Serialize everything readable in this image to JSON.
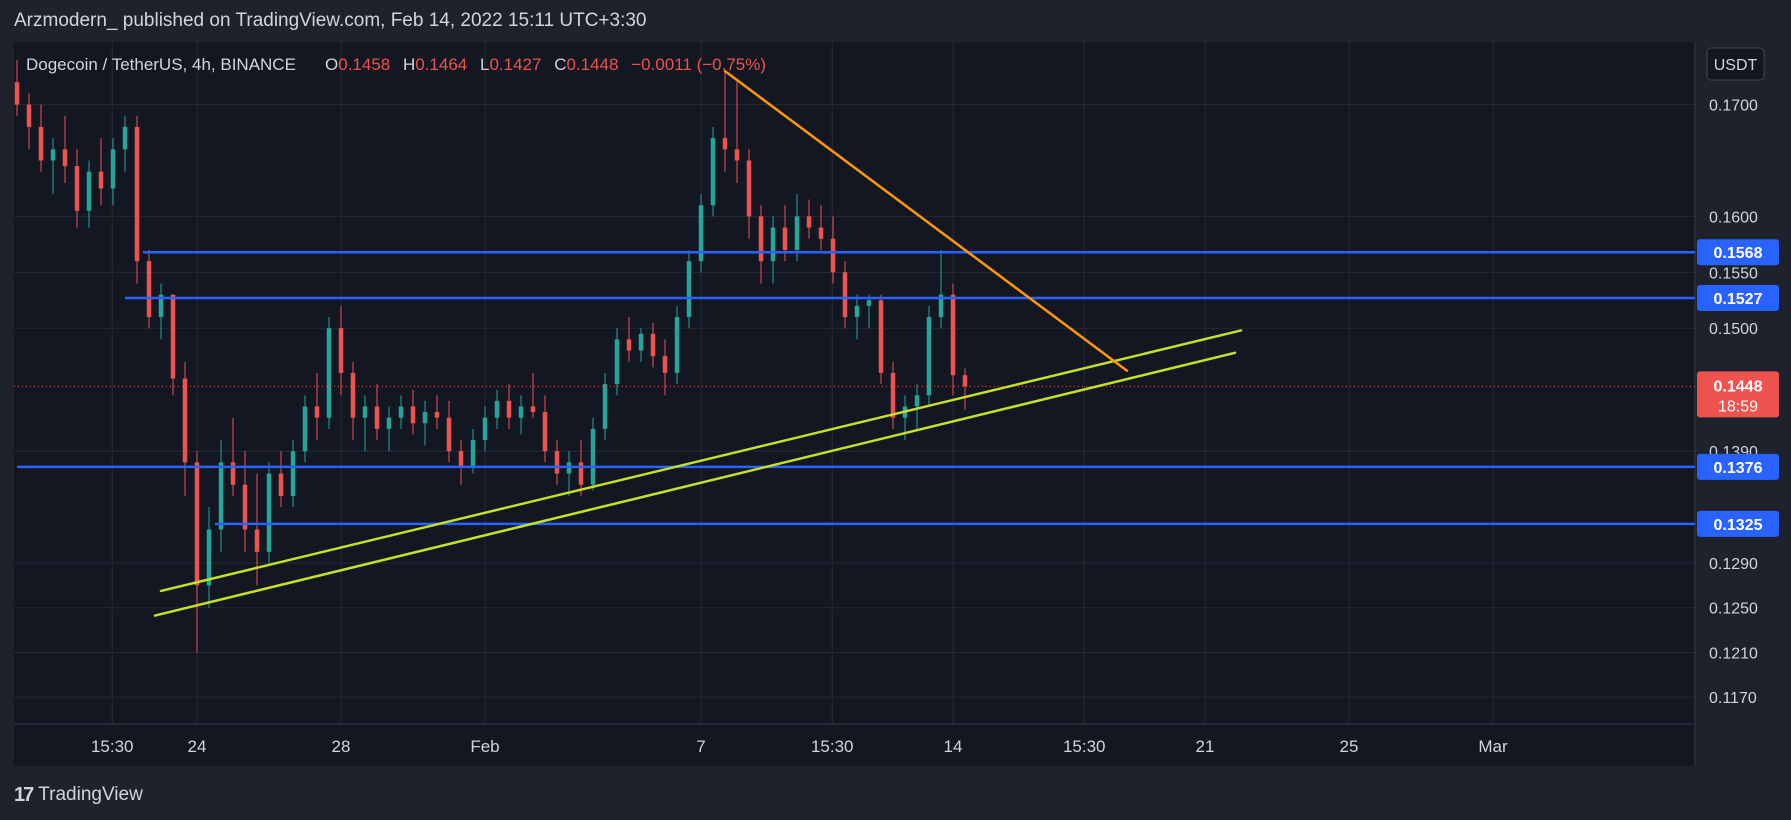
{
  "header": {
    "published_line": "Arzmodern_ published on TradingView.com, Feb 14, 2022 15:11 UTC+3:30"
  },
  "legend": {
    "symbol": "Dogecoin / TetherUS, 4h, BINANCE",
    "open_label": "O",
    "open_value": "0.1458",
    "high_label": "H",
    "high_value": "0.1464",
    "low_label": "L",
    "low_value": "0.1427",
    "close_label": "C",
    "close_value": "0.1448",
    "change": "−0.0011 (−0.75%)"
  },
  "currency_label": "USDT",
  "footer": {
    "logo_text": "TradingView",
    "logo_mark": "17"
  },
  "colors": {
    "background": "#131722",
    "frame": "#1e222d",
    "grid": "#262a35",
    "up": "#26a69a",
    "down": "#ef5350",
    "level_line": "#2962ff",
    "trend_line": "#c6e02a",
    "resistance_line": "#ff9800",
    "text": "#d1d4dc"
  },
  "chart_data": {
    "type": "candlestick",
    "instrument": "Dogecoin / TetherUS",
    "timeframe": "4h",
    "exchange": "BINANCE",
    "y_axis": {
      "ylim": [
        0.1146,
        0.1756
      ],
      "tick_labels": [
        "0.1700",
        "0.1600",
        "0.1550",
        "0.1500",
        "0.1390",
        "0.1290",
        "0.1250",
        "0.1210",
        "0.1170"
      ],
      "tick_values": [
        0.17,
        0.16,
        0.155,
        0.15,
        0.139,
        0.129,
        0.125,
        0.121,
        0.117
      ]
    },
    "x_axis": {
      "tick_labels": [
        "15:30",
        "24",
        "28",
        "Feb",
        "7",
        "15:30",
        "14",
        "15:30",
        "21",
        "25",
        "Mar"
      ],
      "tick_dates": [
        "2022-01-21 15:30",
        "2022-01-24",
        "2022-01-28",
        "2022-02-01",
        "2022-02-07",
        "2022-02-10 15:30",
        "2022-02-14",
        "2022-02-17 15:30",
        "2022-02-21",
        "2022-02-25",
        "2022-03-01"
      ]
    },
    "last_price": {
      "value": 0.1448,
      "label": "0.1448",
      "countdown": "18:59"
    },
    "horizontal_levels": [
      {
        "value": 0.1568,
        "label": "0.1568",
        "start": "2022-01-22 12:00"
      },
      {
        "value": 0.1527,
        "label": "0.1527",
        "start": "2022-01-22 00:00"
      },
      {
        "value": 0.1376,
        "label": "0.1376",
        "start": "2022-01-19 00:00"
      },
      {
        "value": 0.1325,
        "label": "0.1325",
        "start": "2022-01-24 12:00"
      }
    ],
    "trend_lines": [
      {
        "name": "upper-support",
        "color": "#c6e02a",
        "from": [
          "2022-01-23 00:00",
          0.1265
        ],
        "to": [
          "2022-02-22 00:00",
          0.1498
        ]
      },
      {
        "name": "lower-support",
        "color": "#c6e02a",
        "from": [
          "2022-01-22 20:00",
          0.1243
        ],
        "to": [
          "2022-02-21 20:00",
          0.1478
        ]
      },
      {
        "name": "descending-resistance",
        "color": "#ff9800",
        "from": [
          "2022-02-07 16:00",
          0.173
        ],
        "to": [
          "2022-02-18 20:00",
          0.1462
        ]
      }
    ],
    "candles": [
      {
        "t": "2022-01-19 00:00",
        "o": 0.172,
        "h": 0.174,
        "l": 0.169,
        "c": 0.17
      },
      {
        "t": "2022-01-19 08:00",
        "o": 0.17,
        "h": 0.171,
        "l": 0.166,
        "c": 0.168
      },
      {
        "t": "2022-01-19 16:00",
        "o": 0.168,
        "h": 0.17,
        "l": 0.164,
        "c": 0.165
      },
      {
        "t": "2022-01-20 00:00",
        "o": 0.165,
        "h": 0.167,
        "l": 0.162,
        "c": 0.166
      },
      {
        "t": "2022-01-20 08:00",
        "o": 0.166,
        "h": 0.169,
        "l": 0.163,
        "c": 0.1645
      },
      {
        "t": "2022-01-20 16:00",
        "o": 0.1645,
        "h": 0.166,
        "l": 0.159,
        "c": 0.1605
      },
      {
        "t": "2022-01-21 00:00",
        "o": 0.1605,
        "h": 0.165,
        "l": 0.159,
        "c": 0.164
      },
      {
        "t": "2022-01-21 08:00",
        "o": 0.164,
        "h": 0.167,
        "l": 0.161,
        "c": 0.1625
      },
      {
        "t": "2022-01-21 16:00",
        "o": 0.1625,
        "h": 0.167,
        "l": 0.161,
        "c": 0.166
      },
      {
        "t": "2022-01-22 00:00",
        "o": 0.166,
        "h": 0.169,
        "l": 0.164,
        "c": 0.168
      },
      {
        "t": "2022-01-22 08:00",
        "o": 0.168,
        "h": 0.169,
        "l": 0.154,
        "c": 0.156
      },
      {
        "t": "2022-01-22 16:00",
        "o": 0.156,
        "h": 0.157,
        "l": 0.15,
        "c": 0.151
      },
      {
        "t": "2022-01-23 00:00",
        "o": 0.151,
        "h": 0.154,
        "l": 0.149,
        "c": 0.153
      },
      {
        "t": "2022-01-23 08:00",
        "o": 0.153,
        "h": 0.153,
        "l": 0.144,
        "c": 0.1455
      },
      {
        "t": "2022-01-23 16:00",
        "o": 0.1455,
        "h": 0.147,
        "l": 0.135,
        "c": 0.138
      },
      {
        "t": "2022-01-24 00:00",
        "o": 0.138,
        "h": 0.139,
        "l": 0.121,
        "c": 0.127
      },
      {
        "t": "2022-01-24 08:00",
        "o": 0.127,
        "h": 0.134,
        "l": 0.125,
        "c": 0.132
      },
      {
        "t": "2022-01-24 16:00",
        "o": 0.132,
        "h": 0.14,
        "l": 0.13,
        "c": 0.138
      },
      {
        "t": "2022-01-25 00:00",
        "o": 0.138,
        "h": 0.142,
        "l": 0.135,
        "c": 0.136
      },
      {
        "t": "2022-01-25 08:00",
        "o": 0.136,
        "h": 0.139,
        "l": 0.13,
        "c": 0.132
      },
      {
        "t": "2022-01-25 16:00",
        "o": 0.132,
        "h": 0.137,
        "l": 0.127,
        "c": 0.13
      },
      {
        "t": "2022-01-26 00:00",
        "o": 0.13,
        "h": 0.138,
        "l": 0.129,
        "c": 0.137
      },
      {
        "t": "2022-01-26 08:00",
        "o": 0.137,
        "h": 0.139,
        "l": 0.134,
        "c": 0.135
      },
      {
        "t": "2022-01-26 16:00",
        "o": 0.135,
        "h": 0.14,
        "l": 0.134,
        "c": 0.139
      },
      {
        "t": "2022-01-27 00:00",
        "o": 0.139,
        "h": 0.144,
        "l": 0.138,
        "c": 0.143
      },
      {
        "t": "2022-01-27 08:00",
        "o": 0.143,
        "h": 0.146,
        "l": 0.14,
        "c": 0.142
      },
      {
        "t": "2022-01-27 16:00",
        "o": 0.142,
        "h": 0.151,
        "l": 0.141,
        "c": 0.15
      },
      {
        "t": "2022-01-28 00:00",
        "o": 0.15,
        "h": 0.152,
        "l": 0.144,
        "c": 0.146
      },
      {
        "t": "2022-01-28 08:00",
        "o": 0.146,
        "h": 0.147,
        "l": 0.14,
        "c": 0.142
      },
      {
        "t": "2022-01-28 16:00",
        "o": 0.142,
        "h": 0.144,
        "l": 0.139,
        "c": 0.143
      },
      {
        "t": "2022-01-29 00:00",
        "o": 0.143,
        "h": 0.145,
        "l": 0.14,
        "c": 0.141
      },
      {
        "t": "2022-01-29 08:00",
        "o": 0.141,
        "h": 0.143,
        "l": 0.139,
        "c": 0.142
      },
      {
        "t": "2022-01-29 16:00",
        "o": 0.142,
        "h": 0.144,
        "l": 0.141,
        "c": 0.143
      },
      {
        "t": "2022-01-30 00:00",
        "o": 0.143,
        "h": 0.1445,
        "l": 0.1405,
        "c": 0.1415
      },
      {
        "t": "2022-01-30 08:00",
        "o": 0.1415,
        "h": 0.1435,
        "l": 0.1395,
        "c": 0.1425
      },
      {
        "t": "2022-01-30 16:00",
        "o": 0.1425,
        "h": 0.144,
        "l": 0.141,
        "c": 0.142
      },
      {
        "t": "2022-01-31 00:00",
        "o": 0.142,
        "h": 0.1435,
        "l": 0.138,
        "c": 0.139
      },
      {
        "t": "2022-01-31 08:00",
        "o": 0.139,
        "h": 0.14,
        "l": 0.136,
        "c": 0.1375
      },
      {
        "t": "2022-01-31 16:00",
        "o": 0.1375,
        "h": 0.141,
        "l": 0.137,
        "c": 0.14
      },
      {
        "t": "2022-02-01 00:00",
        "o": 0.14,
        "h": 0.143,
        "l": 0.139,
        "c": 0.142
      },
      {
        "t": "2022-02-01 08:00",
        "o": 0.142,
        "h": 0.1445,
        "l": 0.141,
        "c": 0.1435
      },
      {
        "t": "2022-02-01 16:00",
        "o": 0.1435,
        "h": 0.145,
        "l": 0.141,
        "c": 0.142
      },
      {
        "t": "2022-02-02 00:00",
        "o": 0.142,
        "h": 0.144,
        "l": 0.1405,
        "c": 0.143
      },
      {
        "t": "2022-02-02 08:00",
        "o": 0.143,
        "h": 0.146,
        "l": 0.142,
        "c": 0.1425
      },
      {
        "t": "2022-02-02 16:00",
        "o": 0.1425,
        "h": 0.144,
        "l": 0.138,
        "c": 0.139
      },
      {
        "t": "2022-02-03 00:00",
        "o": 0.139,
        "h": 0.14,
        "l": 0.136,
        "c": 0.137
      },
      {
        "t": "2022-02-03 08:00",
        "o": 0.137,
        "h": 0.139,
        "l": 0.135,
        "c": 0.138
      },
      {
        "t": "2022-02-03 16:00",
        "o": 0.138,
        "h": 0.14,
        "l": 0.135,
        "c": 0.136
      },
      {
        "t": "2022-02-04 00:00",
        "o": 0.136,
        "h": 0.142,
        "l": 0.1355,
        "c": 0.141
      },
      {
        "t": "2022-02-04 08:00",
        "o": 0.141,
        "h": 0.146,
        "l": 0.14,
        "c": 0.145
      },
      {
        "t": "2022-02-04 16:00",
        "o": 0.145,
        "h": 0.15,
        "l": 0.144,
        "c": 0.149
      },
      {
        "t": "2022-02-05 00:00",
        "o": 0.149,
        "h": 0.151,
        "l": 0.147,
        "c": 0.148
      },
      {
        "t": "2022-02-05 08:00",
        "o": 0.148,
        "h": 0.15,
        "l": 0.147,
        "c": 0.1495
      },
      {
        "t": "2022-02-05 16:00",
        "o": 0.1495,
        "h": 0.1505,
        "l": 0.1465,
        "c": 0.1475
      },
      {
        "t": "2022-02-06 00:00",
        "o": 0.1475,
        "h": 0.149,
        "l": 0.144,
        "c": 0.146
      },
      {
        "t": "2022-02-06 08:00",
        "o": 0.146,
        "h": 0.152,
        "l": 0.145,
        "c": 0.151
      },
      {
        "t": "2022-02-06 16:00",
        "o": 0.151,
        "h": 0.157,
        "l": 0.15,
        "c": 0.156
      },
      {
        "t": "2022-02-07 00:00",
        "o": 0.156,
        "h": 0.162,
        "l": 0.155,
        "c": 0.161
      },
      {
        "t": "2022-02-07 08:00",
        "o": 0.161,
        "h": 0.168,
        "l": 0.16,
        "c": 0.167
      },
      {
        "t": "2022-02-07 16:00",
        "o": 0.167,
        "h": 0.173,
        "l": 0.164,
        "c": 0.166
      },
      {
        "t": "2022-02-08 00:00",
        "o": 0.166,
        "h": 0.172,
        "l": 0.163,
        "c": 0.165
      },
      {
        "t": "2022-02-08 08:00",
        "o": 0.165,
        "h": 0.166,
        "l": 0.158,
        "c": 0.16
      },
      {
        "t": "2022-02-08 16:00",
        "o": 0.16,
        "h": 0.161,
        "l": 0.154,
        "c": 0.156
      },
      {
        "t": "2022-02-09 00:00",
        "o": 0.156,
        "h": 0.16,
        "l": 0.154,
        "c": 0.159
      },
      {
        "t": "2022-02-09 08:00",
        "o": 0.159,
        "h": 0.161,
        "l": 0.156,
        "c": 0.157
      },
      {
        "t": "2022-02-09 16:00",
        "o": 0.157,
        "h": 0.162,
        "l": 0.156,
        "c": 0.16
      },
      {
        "t": "2022-02-10 00:00",
        "o": 0.16,
        "h": 0.1615,
        "l": 0.158,
        "c": 0.159
      },
      {
        "t": "2022-02-10 08:00",
        "o": 0.159,
        "h": 0.161,
        "l": 0.157,
        "c": 0.158
      },
      {
        "t": "2022-02-10 16:00",
        "o": 0.158,
        "h": 0.16,
        "l": 0.154,
        "c": 0.155
      },
      {
        "t": "2022-02-11 00:00",
        "o": 0.155,
        "h": 0.156,
        "l": 0.15,
        "c": 0.151
      },
      {
        "t": "2022-02-11 08:00",
        "o": 0.151,
        "h": 0.153,
        "l": 0.149,
        "c": 0.152
      },
      {
        "t": "2022-02-11 16:00",
        "o": 0.152,
        "h": 0.153,
        "l": 0.15,
        "c": 0.1525
      },
      {
        "t": "2022-02-12 00:00",
        "o": 0.1525,
        "h": 0.153,
        "l": 0.145,
        "c": 0.146
      },
      {
        "t": "2022-02-12 08:00",
        "o": 0.146,
        "h": 0.147,
        "l": 0.141,
        "c": 0.142
      },
      {
        "t": "2022-02-12 16:00",
        "o": 0.142,
        "h": 0.144,
        "l": 0.14,
        "c": 0.143
      },
      {
        "t": "2022-02-13 00:00",
        "o": 0.143,
        "h": 0.145,
        "l": 0.141,
        "c": 0.144
      },
      {
        "t": "2022-02-13 08:00",
        "o": 0.144,
        "h": 0.152,
        "l": 0.143,
        "c": 0.151
      },
      {
        "t": "2022-02-13 16:00",
        "o": 0.151,
        "h": 0.157,
        "l": 0.15,
        "c": 0.153
      },
      {
        "t": "2022-02-14 00:00",
        "o": 0.153,
        "h": 0.154,
        "l": 0.144,
        "c": 0.1458
      },
      {
        "t": "2022-02-14 08:00",
        "o": 0.1458,
        "h": 0.1464,
        "l": 0.1427,
        "c": 0.1448
      }
    ]
  }
}
